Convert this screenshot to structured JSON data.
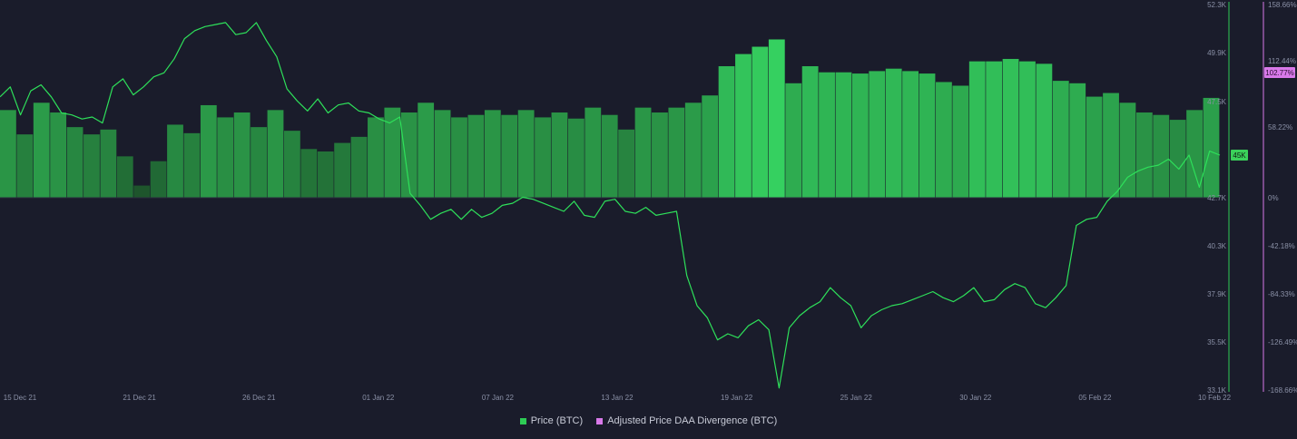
{
  "chart_data": {
    "type": "bar+line",
    "title": "",
    "xlabel": "",
    "x_ticks": [
      "15 Dec 21",
      "21 Dec 21",
      "26 Dec 21",
      "01 Jan 22",
      "07 Jan 22",
      "13 Jan 22",
      "19 Jan 22",
      "25 Jan 22",
      "30 Jan 22",
      "05 Feb 22",
      "10 Feb 22"
    ],
    "y_left": {
      "ticks": [
        "52.3K",
        "49.9K",
        "47.5K",
        "45K",
        "42.7K",
        "40.3K",
        "37.9K",
        "35.5K",
        "33.1K"
      ],
      "range": [
        33100,
        52300
      ],
      "current_label": "45K"
    },
    "y_right": {
      "ticks": [
        "158.66%",
        "112.44%",
        "58.22%",
        "0%",
        "-42.18%",
        "-84.33%",
        "-126.49%",
        "-168.66%"
      ],
      "range": [
        -168.66,
        158.66
      ],
      "current_label": "102.77%"
    },
    "series": [
      {
        "name": "Adjusted Price DAA Divergence (BTC)",
        "kind": "bar",
        "unit": "%",
        "values": [
          72,
          52,
          78,
          70,
          58,
          52,
          56,
          34,
          10,
          30,
          60,
          53,
          76,
          66,
          70,
          58,
          72,
          55,
          40,
          38,
          45,
          50,
          66,
          74,
          70,
          78,
          72,
          66,
          68,
          72,
          68,
          72,
          66,
          70,
          65,
          74,
          68,
          56,
          74,
          70,
          74,
          78,
          84,
          108,
          118,
          124,
          130,
          94,
          108,
          103,
          103,
          102,
          104,
          106,
          104,
          102,
          95,
          92,
          112,
          112,
          114,
          112,
          110,
          96,
          94,
          83,
          86,
          78,
          70,
          68,
          64,
          72,
          82
        ]
      },
      {
        "name": "Price (BTC)",
        "kind": "line",
        "unit": "USD",
        "values": [
          47700,
          48200,
          46800,
          48000,
          48300,
          47700,
          46900,
          46800,
          46600,
          46700,
          46400,
          48200,
          48600,
          47800,
          48200,
          48700,
          48900,
          49600,
          50600,
          51000,
          51200,
          51300,
          51400,
          50800,
          50900,
          51400,
          50500,
          49700,
          48100,
          47500,
          47000,
          47600,
          46900,
          47300,
          47400,
          47000,
          46900,
          46600,
          46400,
          46700,
          42900,
          42300,
          41600,
          41900,
          42100,
          41600,
          42100,
          41700,
          41900,
          42300,
          42400,
          42700,
          42600,
          42400,
          42200,
          42000,
          42500,
          41800,
          41700,
          42500,
          42600,
          42000,
          41900,
          42200,
          41800,
          41900,
          42000,
          38800,
          37300,
          36700,
          35600,
          35900,
          35700,
          36300,
          36600,
          36100,
          33200,
          36200,
          36800,
          37200,
          37500,
          38200,
          37700,
          37300,
          36200,
          36800,
          37100,
          37300,
          37400,
          37600,
          37800,
          38000,
          37700,
          37500,
          37800,
          38200,
          37500,
          37600,
          38100,
          38400,
          38200,
          37400,
          37200,
          37700,
          38300,
          41300,
          41600,
          41700,
          42500,
          43000,
          43700,
          44000,
          44200,
          44300,
          44600,
          44100,
          44800,
          43200,
          45000,
          44800
        ]
      }
    ],
    "colors": {
      "bar_dark": "#1e5a2c",
      "bar_bright": "#37e065",
      "price_line": "#2ee05a",
      "divergence_marker": "#d879e9",
      "price_marker": "#3bd15a"
    }
  },
  "legend": {
    "price_label": "Price (BTC)",
    "divergence_label": "Adjusted Price DAA Divergence (BTC)"
  }
}
